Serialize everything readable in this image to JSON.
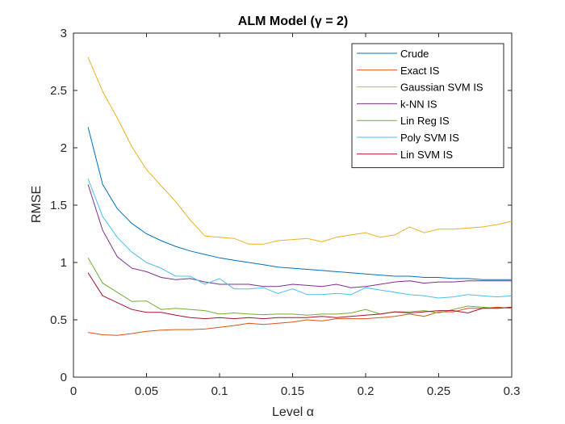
{
  "chart_data": {
    "type": "line",
    "title": "ALM Model (γ = 2)",
    "xlabel": "Level α",
    "ylabel": "RMSE",
    "xlim": [
      0,
      0.3
    ],
    "ylim": [
      0,
      3
    ],
    "xticks": [
      0,
      0.05,
      0.1,
      0.15,
      0.2,
      0.25,
      0.3
    ],
    "xtick_labels": [
      "0",
      "0.05",
      "0.1",
      "0.15",
      "0.2",
      "0.25",
      "0.3"
    ],
    "yticks": [
      0,
      0.5,
      1,
      1.5,
      2,
      2.5,
      3
    ],
    "ytick_labels": [
      "0",
      "0.5",
      "1",
      "1.5",
      "2",
      "2.5",
      "3"
    ],
    "grid": false,
    "legend_position": "top-right",
    "x": [
      0.01,
      0.02,
      0.03,
      0.04,
      0.05,
      0.06,
      0.07,
      0.08,
      0.09,
      0.1,
      0.11,
      0.12,
      0.13,
      0.14,
      0.15,
      0.16,
      0.17,
      0.18,
      0.19,
      0.2,
      0.21,
      0.22,
      0.23,
      0.24,
      0.25,
      0.26,
      0.27,
      0.28,
      0.29,
      0.3
    ],
    "series": [
      {
        "name": "Crude",
        "color": "#0072BD",
        "values": [
          2.18,
          1.68,
          1.47,
          1.34,
          1.25,
          1.19,
          1.14,
          1.1,
          1.07,
          1.04,
          1.02,
          1.0,
          0.98,
          0.96,
          0.95,
          0.94,
          0.93,
          0.92,
          0.91,
          0.9,
          0.89,
          0.88,
          0.88,
          0.87,
          0.87,
          0.86,
          0.86,
          0.85,
          0.85,
          0.85
        ]
      },
      {
        "name": "Exact IS",
        "color": "#D95319",
        "values": [
          0.39,
          0.37,
          0.365,
          0.38,
          0.4,
          0.41,
          0.415,
          0.415,
          0.42,
          0.435,
          0.45,
          0.47,
          0.46,
          0.47,
          0.48,
          0.5,
          0.49,
          0.51,
          0.51,
          0.51,
          0.52,
          0.53,
          0.55,
          0.53,
          0.57,
          0.57,
          0.6,
          0.6,
          0.61,
          0.6
        ]
      },
      {
        "name": "Gaussian SVM IS",
        "color": "#EDB120",
        "values": [
          2.79,
          2.49,
          2.26,
          2.01,
          1.81,
          1.67,
          1.53,
          1.37,
          1.23,
          1.22,
          1.21,
          1.16,
          1.16,
          1.19,
          1.2,
          1.21,
          1.18,
          1.22,
          1.24,
          1.26,
          1.22,
          1.24,
          1.31,
          1.26,
          1.29,
          1.29,
          1.3,
          1.31,
          1.33,
          1.36
        ]
      },
      {
        "name": "k-NN IS",
        "color": "#7E2F8E",
        "values": [
          1.68,
          1.28,
          1.05,
          0.95,
          0.92,
          0.87,
          0.85,
          0.86,
          0.83,
          0.81,
          0.81,
          0.81,
          0.79,
          0.79,
          0.81,
          0.8,
          0.79,
          0.81,
          0.78,
          0.79,
          0.81,
          0.83,
          0.84,
          0.82,
          0.83,
          0.83,
          0.84,
          0.84,
          0.84,
          0.84
        ]
      },
      {
        "name": "Lin Reg IS",
        "color": "#77AC30",
        "values": [
          1.04,
          0.82,
          0.74,
          0.66,
          0.665,
          0.59,
          0.6,
          0.59,
          0.58,
          0.55,
          0.56,
          0.55,
          0.545,
          0.55,
          0.55,
          0.54,
          0.55,
          0.55,
          0.56,
          0.59,
          0.55,
          0.57,
          0.57,
          0.58,
          0.56,
          0.59,
          0.62,
          0.61,
          0.6,
          0.61
        ]
      },
      {
        "name": "Poly SVM IS",
        "color": "#4DBEEE",
        "values": [
          1.73,
          1.4,
          1.22,
          1.09,
          1.0,
          0.95,
          0.88,
          0.88,
          0.81,
          0.86,
          0.77,
          0.77,
          0.78,
          0.73,
          0.77,
          0.72,
          0.72,
          0.73,
          0.72,
          0.78,
          0.76,
          0.74,
          0.72,
          0.71,
          0.69,
          0.7,
          0.72,
          0.71,
          0.7,
          0.71
        ]
      },
      {
        "name": "Lin SVM IS",
        "color": "#A2142F",
        "values": [
          0.91,
          0.71,
          0.65,
          0.59,
          0.565,
          0.565,
          0.54,
          0.52,
          0.51,
          0.52,
          0.51,
          0.52,
          0.51,
          0.52,
          0.52,
          0.52,
          0.53,
          0.52,
          0.53,
          0.54,
          0.55,
          0.57,
          0.56,
          0.57,
          0.58,
          0.58,
          0.56,
          0.6,
          0.6,
          0.61
        ]
      }
    ]
  }
}
